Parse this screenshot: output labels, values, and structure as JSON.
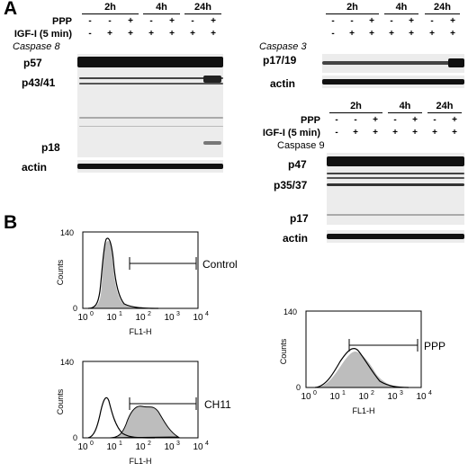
{
  "panel_a": {
    "letter": "A",
    "caspase8": {
      "times": [
        "2h",
        "4h",
        "24h"
      ],
      "row_ppp_label": "PPP",
      "row_igf_label": "IGF-I (5 min)",
      "ppp_signs": [
        "-",
        "-",
        "+",
        "-",
        "+",
        "-",
        "+"
      ],
      "igf_signs": [
        "-",
        "+",
        "+",
        "+",
        "+",
        "+",
        "+"
      ],
      "title": "Caspase 8",
      "markers": [
        "p57",
        "p43/41",
        "p18",
        "actin"
      ]
    },
    "caspase3": {
      "times": [
        "2h",
        "4h",
        "24h"
      ],
      "ppp_signs": [
        "-",
        "-",
        "+",
        "-",
        "+",
        "-",
        "+"
      ],
      "igf_signs": [
        "-",
        "+",
        "+",
        "+",
        "+",
        "+",
        "+"
      ],
      "title": "Caspase 3",
      "markers": [
        "p17/19",
        "actin"
      ]
    },
    "caspase9": {
      "times": [
        "2h",
        "4h",
        "24h"
      ],
      "row_ppp_label": "PPP",
      "row_igf_label": "IGF-I (5 min)",
      "ppp_signs": [
        "-",
        "-",
        "+",
        "-",
        "+",
        "-",
        "+"
      ],
      "igf_signs": [
        "-",
        "+",
        "+",
        "+",
        "+",
        "+",
        "+"
      ],
      "title": "Caspase 9",
      "markers": [
        "p47",
        "p35/37",
        "p17",
        "actin"
      ]
    }
  },
  "panel_b": {
    "letter": "B",
    "y_axis_label": "Counts",
    "y_max_tick": "140",
    "x_axis_label": "FL1-H",
    "x_ticks": [
      "10",
      "10",
      "10",
      "10",
      "10"
    ],
    "x_tick_exponents": [
      "0",
      "1",
      "2",
      "3",
      "4"
    ],
    "histograms": [
      {
        "label": "Control"
      },
      {
        "label": "CH11"
      },
      {
        "label": "PPP"
      }
    ]
  }
}
